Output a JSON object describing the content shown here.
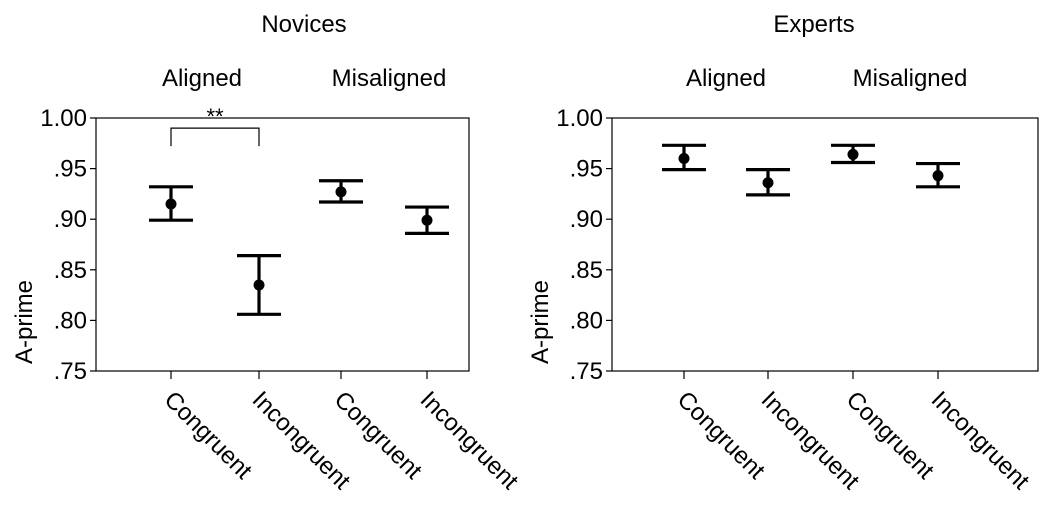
{
  "chart_data": [
    {
      "type": "scatter",
      "title": "Novices",
      "ylabel": "A-prime",
      "groups": [
        "Aligned",
        "Misaligned"
      ],
      "categories": [
        "Congruent",
        "Incongruent",
        "Congruent",
        "Incongruent"
      ],
      "yticks": [
        "1.00",
        ".95",
        ".90",
        ".85",
        ".80",
        ".75"
      ],
      "ylim": [
        0.75,
        1.0
      ],
      "series": [
        {
          "values": [
            0.915,
            0.835,
            0.927,
            0.899
          ],
          "ci_low": [
            0.899,
            0.806,
            0.917,
            0.886
          ],
          "ci_high": [
            0.932,
            0.864,
            0.938,
            0.912
          ]
        }
      ],
      "annotations": [
        {
          "text": "**",
          "from_index": 0,
          "to_index": 1,
          "y": 0.99
        }
      ],
      "grid": false
    },
    {
      "type": "scatter",
      "title": "Experts",
      "ylabel": "A-prime",
      "groups": [
        "Aligned",
        "Misaligned"
      ],
      "categories": [
        "Congruent",
        "Incongruent",
        "Congruent",
        "Incongruent"
      ],
      "yticks": [
        "1.00",
        ".95",
        ".90",
        ".85",
        ".80",
        ".75"
      ],
      "ylim": [
        0.75,
        1.0
      ],
      "series": [
        {
          "values": [
            0.96,
            0.936,
            0.964,
            0.943
          ],
          "ci_low": [
            0.949,
            0.924,
            0.956,
            0.932
          ],
          "ci_high": [
            0.973,
            0.949,
            0.973,
            0.955
          ]
        }
      ],
      "annotations": [],
      "grid": false
    }
  ]
}
